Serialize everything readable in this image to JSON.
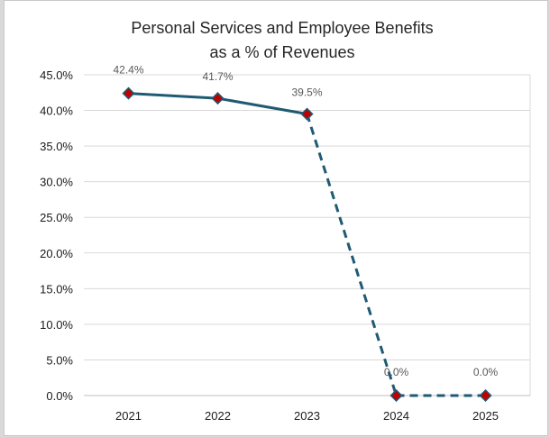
{
  "chart_data": {
    "type": "line",
    "title": [
      "Personal Services and Employee Benefits",
      "as a % of Revenues"
    ],
    "categories": [
      "2021",
      "2022",
      "2023",
      "2024",
      "2025"
    ],
    "series": [
      {
        "values": [
          42.4,
          41.7,
          39.5,
          0.0,
          0.0
        ],
        "data_labels": [
          "42.4%",
          "41.7%",
          "39.5%",
          "0.0%",
          "0.0%"
        ],
        "line_style": [
          "solid",
          "solid",
          "dashed",
          "dashed"
        ],
        "line_color": "#1f5a73",
        "marker": "diamond",
        "marker_color": "#c00000",
        "marker_border_color": "#1f5a73"
      }
    ],
    "yticks": [
      "0.0%",
      "5.0%",
      "10.0%",
      "15.0%",
      "20.0%",
      "25.0%",
      "30.0%",
      "35.0%",
      "40.0%",
      "45.0%"
    ],
    "ylim": [
      0,
      45
    ],
    "grid": true,
    "legend": "none"
  }
}
